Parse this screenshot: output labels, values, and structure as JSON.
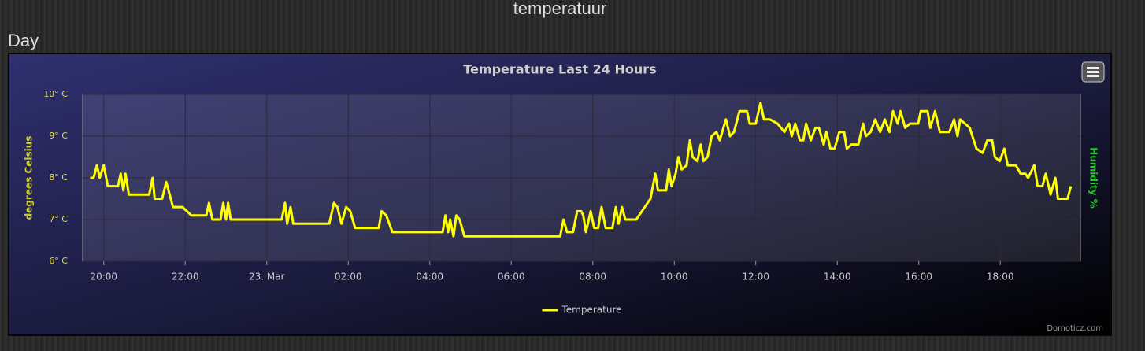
{
  "header": {
    "title": "temperatuur",
    "section": "Day"
  },
  "chart_data": {
    "type": "line",
    "title": "Temperature Last 24 Hours",
    "ylabel": "degrees Celsius",
    "y2label": "Humidity %",
    "credits": "Domoticz.com",
    "grid": true,
    "legend": "bottom",
    "xlim": [
      "22 Mar 19:29",
      "23 Mar 19:58"
    ],
    "xticks": [
      {
        "value": "22 Mar 20:00",
        "label": "20:00"
      },
      {
        "value": "22 Mar 22:00",
        "label": "22:00"
      },
      {
        "value": "23 Mar 00:00",
        "label": "23. Mar"
      },
      {
        "value": "23 Mar 02:00",
        "label": "02:00"
      },
      {
        "value": "23 Mar 04:00",
        "label": "04:00"
      },
      {
        "value": "23 Mar 06:00",
        "label": "06:00"
      },
      {
        "value": "23 Mar 08:00",
        "label": "08:00"
      },
      {
        "value": "23 Mar 10:00",
        "label": "10:00"
      },
      {
        "value": "23 Mar 12:00",
        "label": "12:00"
      },
      {
        "value": "23 Mar 14:00",
        "label": "14:00"
      },
      {
        "value": "23 Mar 16:00",
        "label": "16:00"
      },
      {
        "value": "23 Mar 18:00",
        "label": "18:00"
      }
    ],
    "ylim": [
      6,
      10
    ],
    "yticks": [
      {
        "value": 6,
        "label": "6° C"
      },
      {
        "value": 7,
        "label": "7° C"
      },
      {
        "value": 8,
        "label": "8° C"
      },
      {
        "value": 9,
        "label": "9° C"
      },
      {
        "value": 10,
        "label": "10° C"
      }
    ],
    "x": [
      "22 Mar 19:40",
      "22 Mar 19:45",
      "22 Mar 19:50",
      "22 Mar 19:54",
      "22 Mar 20:00",
      "22 Mar 20:06",
      "22 Mar 20:21",
      "22 Mar 20:25",
      "22 Mar 20:29",
      "22 Mar 20:32",
      "22 Mar 20:37",
      "22 Mar 21:07",
      "22 Mar 21:12",
      "22 Mar 21:15",
      "22 Mar 21:26",
      "22 Mar 21:32",
      "22 Mar 21:37",
      "22 Mar 21:42",
      "22 Mar 21:56",
      "22 Mar 22:09",
      "22 Mar 22:31",
      "22 Mar 22:35",
      "22 Mar 22:40",
      "22 Mar 22:52",
      "22 Mar 22:56",
      "22 Mar 23:00",
      "22 Mar 23:03",
      "22 Mar 23:07",
      "23 Mar 00:22",
      "23 Mar 00:27",
      "23 Mar 00:30",
      "23 Mar 00:35",
      "23 Mar 00:39",
      "23 Mar 01:32",
      "23 Mar 01:39",
      "23 Mar 01:44",
      "23 Mar 01:50",
      "23 Mar 01:57",
      "23 Mar 02:03",
      "23 Mar 02:10",
      "23 Mar 02:45",
      "23 Mar 02:49",
      "23 Mar 02:56",
      "23 Mar 03:05",
      "23 Mar 04:19",
      "23 Mar 04:23",
      "23 Mar 04:27",
      "23 Mar 04:30",
      "23 Mar 04:35",
      "23 Mar 04:39",
      "23 Mar 04:44",
      "23 Mar 04:51",
      "23 Mar 07:12",
      "23 Mar 07:17",
      "23 Mar 07:22",
      "23 Mar 07:31",
      "23 Mar 07:37",
      "23 Mar 07:43",
      "23 Mar 07:46",
      "23 Mar 07:50",
      "23 Mar 07:57",
      "23 Mar 08:02",
      "23 Mar 08:08",
      "23 Mar 08:13",
      "23 Mar 08:19",
      "23 Mar 08:29",
      "23 Mar 08:34",
      "23 Mar 08:38",
      "23 Mar 08:43",
      "23 Mar 08:48",
      "23 Mar 09:04",
      "23 Mar 09:25",
      "23 Mar 09:32",
      "23 Mar 09:36",
      "23 Mar 09:48",
      "23 Mar 09:52",
      "23 Mar 09:56",
      "23 Mar 10:02",
      "23 Mar 10:06",
      "23 Mar 10:11",
      "23 Mar 10:18",
      "23 Mar 10:23",
      "23 Mar 10:27",
      "23 Mar 10:34",
      "23 Mar 10:39",
      "23 Mar 10:43",
      "23 Mar 10:49",
      "23 Mar 10:55",
      "23 Mar 11:02",
      "23 Mar 11:07",
      "23 Mar 11:16",
      "23 Mar 11:22",
      "23 Mar 11:28",
      "23 Mar 11:36",
      "23 Mar 11:47",
      "23 Mar 11:51",
      "23 Mar 12:00",
      "23 Mar 12:07",
      "23 Mar 12:12",
      "23 Mar 12:21",
      "23 Mar 12:32",
      "23 Mar 12:42",
      "23 Mar 12:49",
      "23 Mar 12:53",
      "23 Mar 12:58",
      "23 Mar 13:05",
      "23 Mar 13:10",
      "23 Mar 13:14",
      "23 Mar 13:21",
      "23 Mar 13:28",
      "23 Mar 13:33",
      "23 Mar 13:40",
      "23 Mar 13:44",
      "23 Mar 13:50",
      "23 Mar 13:56",
      "23 Mar 14:03",
      "23 Mar 14:10",
      "23 Mar 14:14",
      "23 Mar 14:21",
      "23 Mar 14:31",
      "23 Mar 14:38",
      "23 Mar 14:42",
      "23 Mar 14:49",
      "23 Mar 14:56",
      "23 Mar 15:03",
      "23 Mar 15:10",
      "23 Mar 15:17",
      "23 Mar 15:22",
      "23 Mar 15:29",
      "23 Mar 15:33",
      "23 Mar 15:40",
      "23 Mar 15:47",
      "23 Mar 15:59",
      "23 Mar 16:03",
      "23 Mar 16:13",
      "23 Mar 16:17",
      "23 Mar 16:24",
      "23 Mar 16:31",
      "23 Mar 16:45",
      "23 Mar 16:52",
      "23 Mar 16:57",
      "23 Mar 17:01",
      "23 Mar 17:08",
      "23 Mar 17:15",
      "23 Mar 17:25",
      "23 Mar 17:34",
      "23 Mar 17:41",
      "23 Mar 17:48",
      "23 Mar 17:52",
      "23 Mar 17:59",
      "23 Mar 18:06",
      "23 Mar 18:11",
      "23 Mar 18:23",
      "23 Mar 18:30",
      "23 Mar 18:37",
      "23 Mar 18:41",
      "23 Mar 18:50",
      "23 Mar 18:55",
      "23 Mar 19:02",
      "23 Mar 19:07",
      "23 Mar 19:14",
      "23 Mar 19:21",
      "23 Mar 19:25",
      "23 Mar 19:39",
      "23 Mar 19:44"
    ],
    "series": [
      {
        "name": "Temperature",
        "color": "#ffff00",
        "values": [
          8.0,
          8.0,
          8.3,
          8.0,
          8.3,
          7.8,
          7.8,
          8.1,
          7.7,
          8.1,
          7.6,
          7.6,
          8.0,
          7.5,
          7.5,
          7.9,
          7.6,
          7.3,
          7.3,
          7.1,
          7.1,
          7.4,
          7.0,
          7.0,
          7.4,
          7.0,
          7.4,
          7.0,
          7.0,
          7.4,
          6.9,
          7.3,
          6.9,
          6.9,
          7.4,
          7.3,
          6.9,
          7.3,
          7.2,
          6.8,
          6.8,
          7.2,
          7.1,
          6.7,
          6.7,
          7.1,
          6.7,
          7.0,
          6.6,
          7.1,
          7.0,
          6.6,
          6.6,
          7.0,
          6.7,
          6.7,
          7.2,
          7.2,
          7.1,
          6.7,
          7.2,
          6.8,
          6.8,
          7.3,
          6.8,
          6.8,
          7.3,
          6.9,
          7.3,
          7.0,
          7.0,
          7.5,
          8.1,
          7.7,
          7.7,
          8.2,
          7.8,
          8.1,
          8.5,
          8.2,
          8.3,
          8.9,
          8.5,
          8.4,
          8.8,
          8.4,
          8.5,
          9.0,
          9.1,
          8.9,
          9.4,
          9.0,
          9.1,
          9.6,
          9.6,
          9.3,
          9.3,
          9.8,
          9.4,
          9.4,
          9.3,
          9.1,
          9.3,
          9.0,
          9.3,
          8.9,
          8.9,
          9.3,
          8.9,
          9.2,
          9.2,
          8.8,
          9.1,
          8.7,
          8.7,
          9.1,
          9.1,
          8.7,
          8.8,
          8.8,
          9.3,
          9.0,
          9.1,
          9.4,
          9.1,
          9.4,
          9.1,
          9.6,
          9.3,
          9.6,
          9.2,
          9.3,
          9.3,
          9.6,
          9.6,
          9.2,
          9.6,
          9.1,
          9.1,
          9.4,
          9.0,
          9.4,
          9.3,
          9.2,
          8.7,
          8.6,
          8.9,
          8.9,
          8.5,
          8.4,
          8.7,
          8.3,
          8.3,
          8.1,
          8.1,
          8.0,
          8.3,
          7.8,
          7.8,
          8.1,
          7.6,
          8.0,
          7.5,
          7.5,
          7.8
        ]
      }
    ]
  }
}
